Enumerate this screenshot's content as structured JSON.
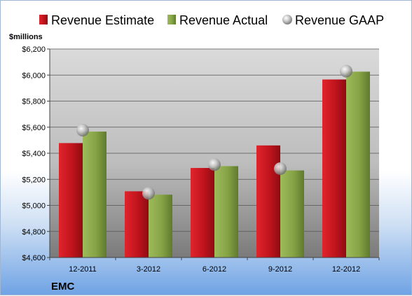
{
  "chart_data": {
    "type": "bar",
    "title": "",
    "unit_label": "$millions",
    "company": "EMC",
    "categories": [
      "12-2011",
      "3-2012",
      "6-2012",
      "9-2012",
      "12-2012"
    ],
    "series": [
      {
        "name": "Revenue Estimate",
        "type": "bar",
        "color": "#c0141d",
        "values": [
          5478,
          5108,
          5287,
          5460,
          5966
        ]
      },
      {
        "name": "Revenue Actual",
        "type": "bar",
        "color": "#8aa84a",
        "values": [
          5566,
          5082,
          5301,
          5268,
          6026
        ]
      },
      {
        "name": "Revenue GAAP",
        "type": "marker",
        "color": "#9a9a9a",
        "values": [
          5577,
          5092,
          5313,
          5282,
          6030
        ]
      }
    ],
    "ylim": [
      4600,
      6200
    ],
    "yticks": [
      "$4,600",
      "$4,800",
      "$5,000",
      "$5,200",
      "$5,400",
      "$5,600",
      "$5,800",
      "$6,000",
      "$6,200"
    ],
    "ytick_values": [
      4600,
      4800,
      5000,
      5200,
      5400,
      5600,
      5800,
      6000,
      6200
    ],
    "grid": true,
    "legend_position": "top"
  }
}
